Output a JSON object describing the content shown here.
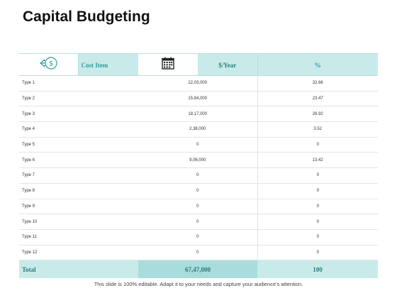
{
  "title": "Capital Budgeting",
  "header": {
    "cost_item": "Cost Item",
    "per_year": "$/Year",
    "percent": "%",
    "icons": [
      "money-transfer-icon",
      "calendar-icon"
    ]
  },
  "rows": [
    {
      "name": "Type 1",
      "year": "22,03,000",
      "pct": "32.66"
    },
    {
      "name": "Type 2",
      "year": "15,84,000",
      "pct": "23.47"
    },
    {
      "name": "Type 3",
      "year": "18,17,000",
      "pct": "26.92"
    },
    {
      "name": "Type 4",
      "year": "2,38,000",
      "pct": "3.52"
    },
    {
      "name": "Type 5",
      "year": "0",
      "pct": "0"
    },
    {
      "name": "Type 6",
      "year": "9,06,000",
      "pct": "13.42"
    },
    {
      "name": "Type 7",
      "year": "0",
      "pct": "0"
    },
    {
      "name": "Type 8",
      "year": "0",
      "pct": "0"
    },
    {
      "name": "Type 9",
      "year": "0",
      "pct": "0"
    },
    {
      "name": "Type 10",
      "year": "0",
      "pct": "0"
    },
    {
      "name": "Type 11",
      "year": "0",
      "pct": "0"
    },
    {
      "name": "Type 12",
      "year": "0",
      "pct": "0"
    }
  ],
  "total": {
    "label": "Total",
    "year": "67,47,000",
    "pct": "100"
  },
  "footer": "This slide is 100% editable. Adapt it to your needs and capture your audience's attention.",
  "colors": {
    "accent": "#2f9a9a",
    "header_fill": "#c8ebea",
    "total_mid_fill": "#a9dcdc"
  }
}
